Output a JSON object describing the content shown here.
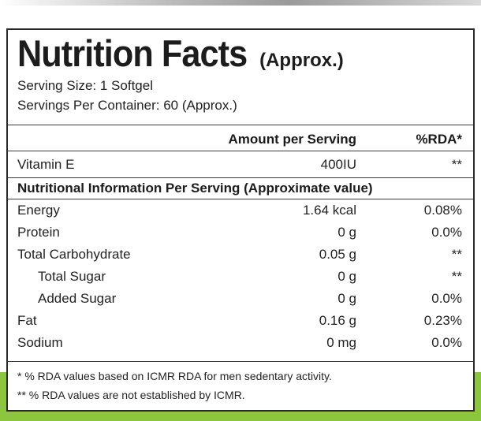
{
  "label": {
    "title": "Nutrition Facts",
    "title_suffix": "(Approx.)",
    "serving_size": "Serving Size: 1 Softgel",
    "servings_per_container": "Servings Per Container: 60 (Approx.)",
    "column_amount": "Amount per Serving",
    "column_rda": "%RDA*",
    "top_rows": [
      {
        "name": "Vitamin E",
        "amount": "400IU",
        "rda": "**"
      }
    ],
    "section_heading": "Nutritional Information Per Serving (Approximate value)",
    "rows": [
      {
        "name": "Energy",
        "amount": "1.64 kcal",
        "rda": "0.08%"
      },
      {
        "name": "Protein",
        "amount": "0 g",
        "rda": "0.0%"
      },
      {
        "name": "Total Carbohydrate",
        "amount": "0.05 g",
        "rda": "**"
      },
      {
        "name": "Total Sugar",
        "amount": "0 g",
        "rda": "**"
      },
      {
        "name": "Added Sugar",
        "amount": "0 g",
        "rda": "0.0%"
      },
      {
        "name": "Fat",
        "amount": "0.16 g",
        "rda": "0.23%"
      },
      {
        "name": "Sodium",
        "amount": "0 mg",
        "rda": "0.0%"
      }
    ],
    "footnotes": [
      "* % RDA values based on ICMR RDA for men sedentary activity.",
      "** % RDA values are not established by ICMR."
    ]
  },
  "colors": {
    "border": "#2a2a2a",
    "text": "#1a1a1a",
    "accent_band": "#8cc63f"
  }
}
